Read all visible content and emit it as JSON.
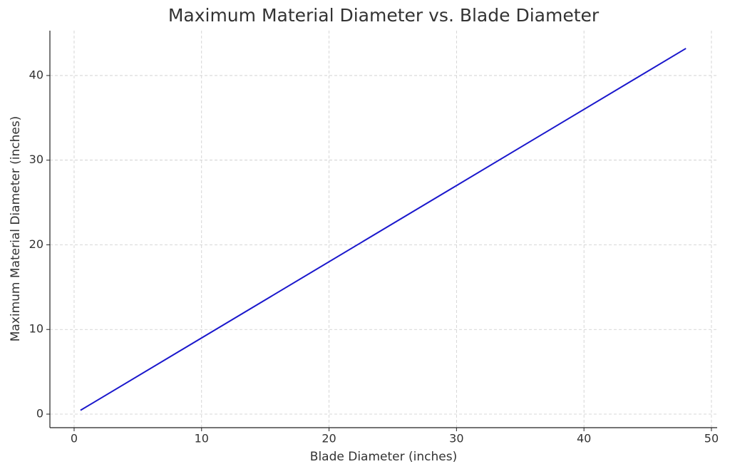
{
  "chart_data": {
    "type": "line",
    "title": "Maximum Material Diameter vs. Blade Diameter",
    "x_label": "Blade Diameter (inches)",
    "y_label": "Maximum Material Diameter (inches)",
    "x": [
      0.5,
      48
    ],
    "series": [
      {
        "color": "#1a17cc",
        "values": [
          0.45,
          43.2
        ]
      }
    ],
    "xlim": [
      -1.9,
      50.45
    ],
    "xticks": [
      0,
      10,
      20,
      30,
      40,
      50
    ],
    "ylim": [
      -1.6,
      45.3
    ],
    "yticks": [
      0,
      10,
      20,
      30,
      40
    ],
    "grid": true
  }
}
